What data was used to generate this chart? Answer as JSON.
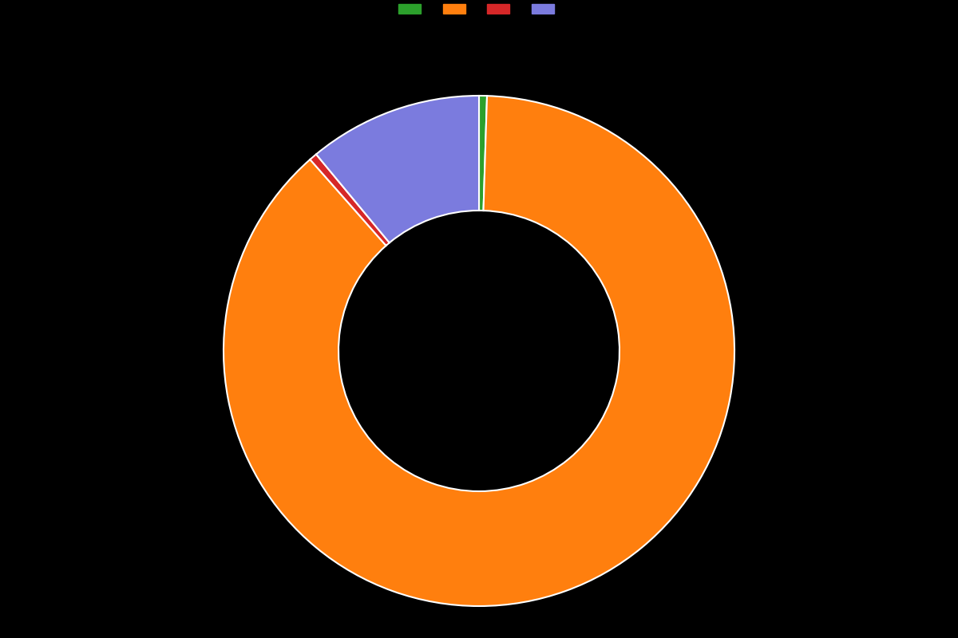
{
  "labels": [
    "",
    "",
    "",
    ""
  ],
  "values": [
    0.5,
    88.0,
    0.5,
    11.0
  ],
  "colors": [
    "#2ca02c",
    "#ff7f0e",
    "#d62728",
    "#7b7bde"
  ],
  "background_color": "#000000",
  "wedge_edge_color": "#ffffff",
  "wedge_linewidth": 1.5,
  "donut_width": 0.45,
  "legend_colors": [
    "#2ca02c",
    "#ff7f0e",
    "#d62728",
    "#7b7bde"
  ],
  "legend_labels": [
    "",
    "",
    "",
    ""
  ],
  "startangle": 90,
  "figsize": [
    12.0,
    8.0
  ],
  "dpi": 100
}
